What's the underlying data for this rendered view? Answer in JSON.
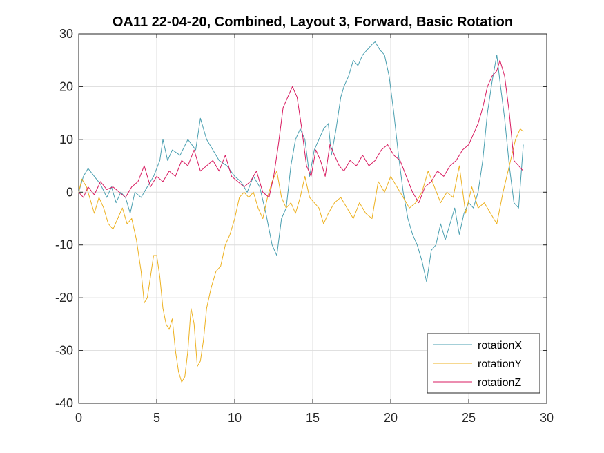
{
  "chart_data": {
    "type": "line",
    "title": "OA11 22-04-20, Combined, Layout 3, Forward, Basic Rotation",
    "xlabel": "",
    "ylabel": "",
    "xlim": [
      0,
      30
    ],
    "ylim": [
      -40,
      30
    ],
    "xticks": [
      0,
      5,
      10,
      15,
      20,
      25,
      30
    ],
    "yticks": [
      -40,
      -30,
      -20,
      -10,
      0,
      10,
      20,
      30
    ],
    "grid": true,
    "legend_position": "bottom-right",
    "series": [
      {
        "name": "rotationX",
        "color": "#4a9fb0",
        "x": [
          0,
          0.3,
          0.6,
          1.0,
          1.4,
          1.8,
          2.1,
          2.4,
          2.7,
          3.0,
          3.3,
          3.6,
          4.0,
          4.4,
          4.8,
          5.2,
          5.4,
          5.7,
          6.0,
          6.5,
          7.0,
          7.5,
          7.8,
          8.2,
          8.6,
          9.0,
          9.5,
          10.0,
          10.4,
          10.8,
          11.2,
          11.6,
          12.0,
          12.4,
          12.7,
          13.0,
          13.3,
          13.6,
          13.9,
          14.2,
          14.5,
          14.8,
          15.1,
          15.4,
          15.7,
          16.0,
          16.2,
          16.5,
          16.8,
          17.0,
          17.3,
          17.6,
          17.9,
          18.2,
          18.5,
          18.8,
          19.0,
          19.3,
          19.6,
          19.9,
          20.2,
          20.5,
          20.8,
          21.1,
          21.4,
          21.7,
          22.0,
          22.3,
          22.6,
          22.9,
          23.2,
          23.5,
          23.8,
          24.1,
          24.4,
          24.7,
          25.0,
          25.3,
          25.6,
          25.9,
          26.2,
          26.5,
          26.8,
          27.0,
          27.3,
          27.6,
          27.9,
          28.2,
          28.5
        ],
        "y": [
          0,
          3,
          4.5,
          3,
          1.5,
          -1,
          1,
          -2,
          0,
          -1,
          -4,
          0,
          -1,
          1,
          3,
          6,
          10,
          6,
          8,
          7,
          10,
          8,
          14,
          10,
          8,
          6,
          5,
          3,
          2,
          0,
          3,
          1,
          -4,
          -10,
          -12,
          -5,
          -3,
          5,
          10,
          12,
          10,
          3,
          8,
          10,
          12,
          13,
          7,
          12,
          18,
          20,
          22,
          25,
          24,
          26,
          27,
          28,
          28.5,
          27,
          26,
          22,
          15,
          7,
          0,
          -5,
          -8,
          -10,
          -13,
          -17,
          -11,
          -10,
          -6,
          -9,
          -6,
          -3,
          -8,
          -4,
          -2,
          -3,
          0,
          6,
          15,
          21,
          26,
          21,
          14,
          5,
          -2,
          -3,
          9
        ]
      },
      {
        "name": "rotationY",
        "color": "#edb120",
        "x": [
          0,
          0.2,
          0.5,
          0.8,
          1.0,
          1.3,
          1.6,
          1.9,
          2.2,
          2.5,
          2.8,
          3.1,
          3.4,
          3.7,
          4.0,
          4.2,
          4.4,
          4.6,
          4.8,
          5.0,
          5.2,
          5.4,
          5.6,
          5.8,
          6.0,
          6.2,
          6.4,
          6.6,
          6.8,
          7.0,
          7.2,
          7.4,
          7.6,
          7.8,
          8.0,
          8.2,
          8.5,
          8.8,
          9.1,
          9.4,
          9.7,
          10.0,
          10.3,
          10.6,
          10.9,
          11.2,
          11.5,
          11.8,
          12.1,
          12.4,
          12.7,
          13.0,
          13.3,
          13.6,
          13.9,
          14.2,
          14.5,
          14.8,
          15.1,
          15.4,
          15.7,
          16.0,
          16.4,
          16.8,
          17.2,
          17.6,
          18.0,
          18.4,
          18.8,
          19.2,
          19.6,
          20.0,
          20.4,
          20.8,
          21.2,
          21.6,
          22.0,
          22.4,
          22.8,
          23.2,
          23.6,
          24.0,
          24.4,
          24.8,
          25.2,
          25.6,
          26.0,
          26.4,
          26.8,
          27.2,
          27.6,
          28.0,
          28.3,
          28.5
        ],
        "y": [
          0,
          2.5,
          1,
          -2,
          -4,
          -1,
          -3,
          -6,
          -7,
          -5,
          -3,
          -6,
          -5,
          -9,
          -15,
          -21,
          -20,
          -16,
          -12,
          -12,
          -16,
          -22,
          -25,
          -26,
          -24,
          -30,
          -34,
          -36,
          -35,
          -30,
          -22,
          -25,
          -33,
          -32,
          -28,
          -22,
          -18,
          -15,
          -14,
          -10,
          -8,
          -5,
          -1,
          0,
          -1,
          0,
          -3,
          -5,
          -1,
          2,
          4,
          -1,
          -3,
          -2,
          -4,
          -1,
          3,
          -1,
          -2,
          -3,
          -6,
          -4,
          -2,
          -1,
          -3,
          -5,
          -2,
          -4,
          -5,
          2,
          0,
          3,
          1,
          -1,
          -3,
          -2,
          0,
          4,
          1,
          -2,
          0,
          -1,
          5,
          -4,
          1,
          -3,
          -2,
          -4,
          -6,
          0,
          5,
          10,
          12,
          11.5
        ]
      },
      {
        "name": "rotationZ",
        "color": "#d81b60",
        "x": [
          0,
          0.3,
          0.6,
          1.0,
          1.4,
          1.8,
          2.2,
          2.6,
          3.0,
          3.4,
          3.8,
          4.2,
          4.6,
          5.0,
          5.4,
          5.8,
          6.2,
          6.6,
          7.0,
          7.4,
          7.8,
          8.2,
          8.6,
          9.0,
          9.4,
          9.8,
          10.2,
          10.6,
          11.0,
          11.4,
          11.8,
          12.2,
          12.5,
          12.8,
          13.1,
          13.4,
          13.7,
          14.0,
          14.3,
          14.6,
          14.9,
          15.2,
          15.5,
          15.8,
          16.1,
          16.4,
          16.7,
          17.0,
          17.4,
          17.8,
          18.2,
          18.6,
          19.0,
          19.4,
          19.8,
          20.2,
          20.6,
          21.0,
          21.4,
          21.8,
          22.2,
          22.6,
          23.0,
          23.4,
          23.8,
          24.2,
          24.6,
          25.0,
          25.3,
          25.6,
          25.9,
          26.2,
          26.5,
          26.8,
          27.0,
          27.3,
          27.6,
          27.9,
          28.2,
          28.5
        ],
        "y": [
          0,
          -1,
          1,
          -0.5,
          2,
          0.5,
          1,
          0,
          -1,
          1,
          2,
          5,
          1,
          3,
          2,
          4,
          3,
          6,
          5,
          8,
          4,
          5,
          6,
          4,
          7,
          3,
          2,
          1,
          2,
          4,
          0,
          -1,
          3,
          9,
          16,
          18,
          20,
          18,
          12,
          5,
          3,
          8,
          6,
          3,
          9,
          7,
          5,
          4,
          6,
          5,
          7,
          5,
          6,
          8,
          9,
          7,
          6,
          3,
          0,
          -2,
          1,
          2,
          4,
          3,
          5,
          6,
          8,
          9,
          11,
          13,
          16,
          20,
          22,
          23,
          25,
          22,
          15,
          6,
          5,
          4
        ]
      }
    ]
  }
}
